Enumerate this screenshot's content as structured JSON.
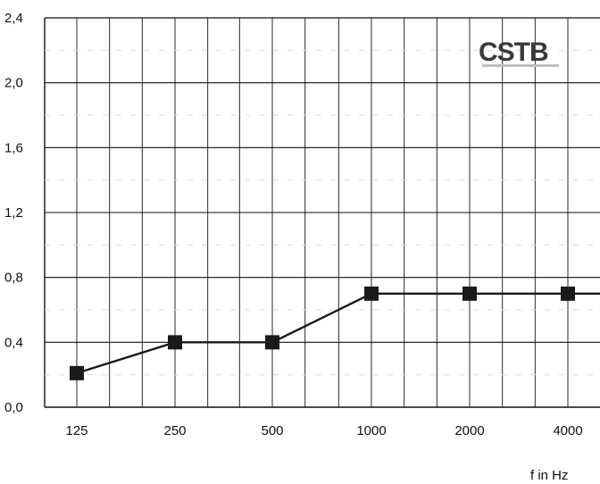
{
  "chart_data": {
    "type": "line",
    "categories": [
      "125",
      "250",
      "500",
      "1000",
      "2000",
      "4000"
    ],
    "series": [
      {
        "values": [
          0.21,
          0.4,
          0.4,
          0.7,
          0.7,
          0.7
        ]
      }
    ],
    "yticks": [
      "0,0",
      "0,4",
      "0,8",
      "1,2",
      "1,6",
      "2,0",
      "2,4"
    ],
    "ylim": [
      0,
      2.4
    ],
    "xlabel": "f in Hz",
    "grid": true,
    "logo": "CSTB",
    "colors": {
      "line": "#1a1a1a",
      "marker": "#1a1a1a",
      "grid": "#111111"
    }
  }
}
